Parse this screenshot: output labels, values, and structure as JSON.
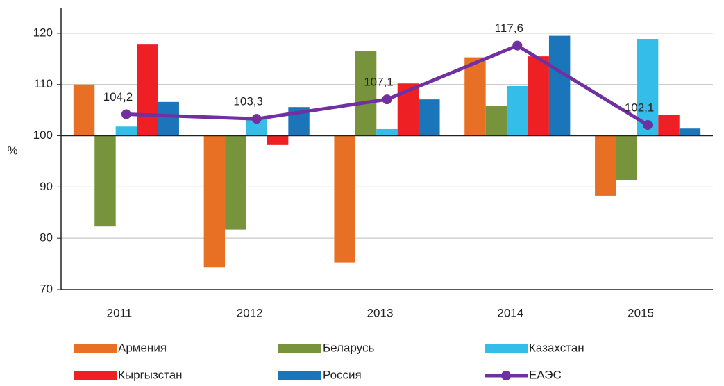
{
  "chart_data": {
    "type": "bar",
    "ylabel": "%",
    "categories": [
      "2011",
      "2012",
      "2013",
      "2014",
      "2015"
    ],
    "series": [
      {
        "name": "Армения",
        "color": "#e87024",
        "values": [
          110.0,
          74.3,
          75.2,
          115.3,
          88.3
        ]
      },
      {
        "name": "Беларусь",
        "color": "#77933c",
        "values": [
          82.3,
          81.7,
          116.6,
          105.8,
          91.4
        ]
      },
      {
        "name": "Казахстан",
        "color": "#33bde8",
        "values": [
          101.8,
          103.2,
          101.3,
          109.7,
          118.9
        ]
      },
      {
        "name": "Кыргызстан",
        "color": "#ee2024",
        "values": [
          117.8,
          98.2,
          110.2,
          115.5,
          104.1
        ]
      },
      {
        "name": "Россия",
        "color": "#1a75bb",
        "values": [
          106.6,
          105.6,
          107.1,
          119.5,
          101.4
        ]
      },
      {
        "name": "ЕАЭС",
        "color": "#7030a0",
        "type": "line",
        "values": [
          104.2,
          103.3,
          107.1,
          117.6,
          102.1
        ],
        "value_labels": [
          "104,2",
          "103,3",
          "107,1",
          "117,6",
          "102,1"
        ]
      }
    ],
    "baseline": 100,
    "ylim": [
      70,
      125
    ],
    "yticks": [
      70,
      80,
      90,
      100,
      110,
      120
    ],
    "grid": true
  }
}
